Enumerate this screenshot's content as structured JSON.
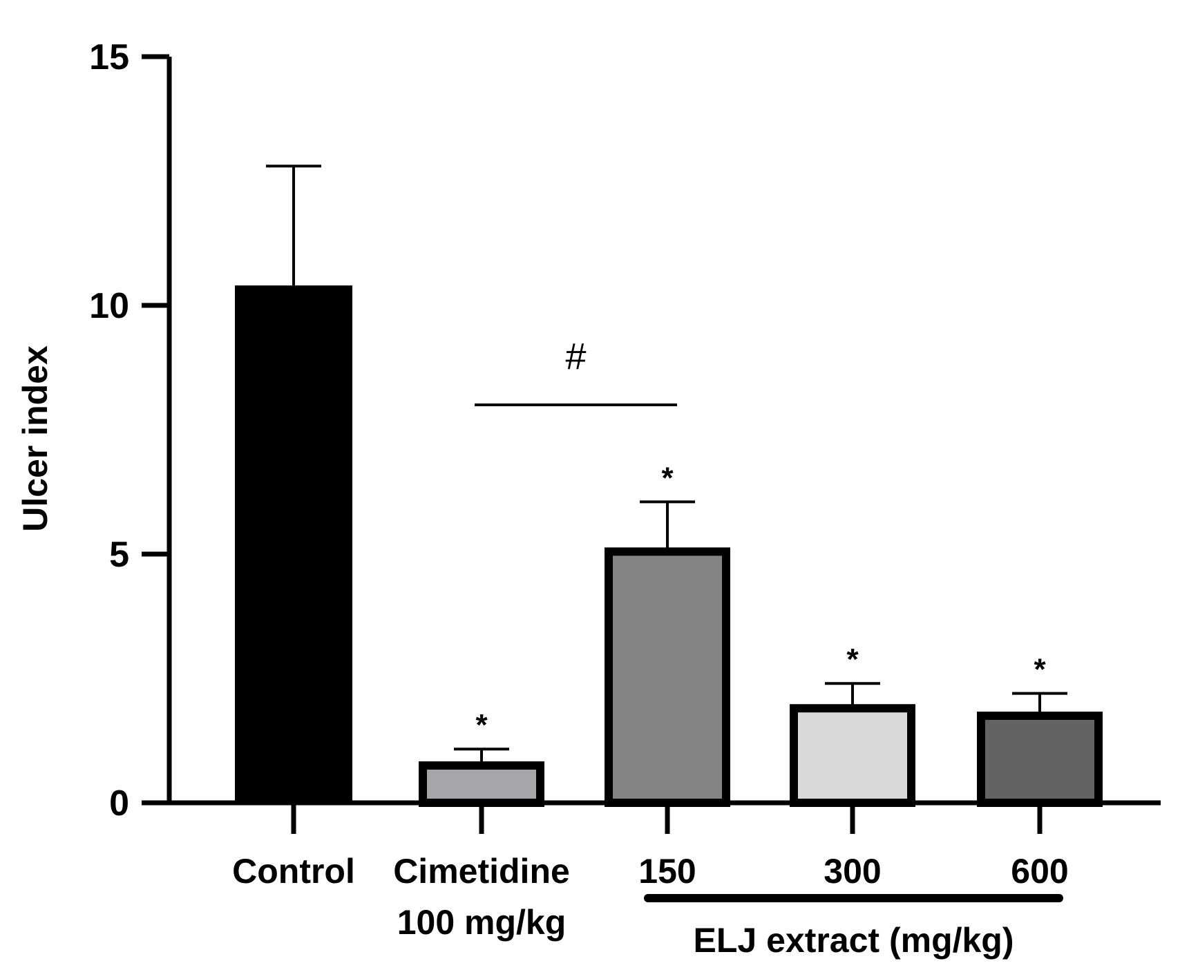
{
  "chart_data": {
    "type": "bar",
    "title": "",
    "xlabel": "",
    "ylabel": "Ulcer index",
    "ylim": [
      0,
      15
    ],
    "yticks": [
      0,
      5,
      10,
      15
    ],
    "grid": false,
    "categories": [
      {
        "line1": "Control",
        "line2": ""
      },
      {
        "line1": "Cimetidine",
        "line2": "100 mg/kg"
      },
      {
        "line1": "150",
        "line2": ""
      },
      {
        "line1": "300",
        "line2": ""
      },
      {
        "line1": "600",
        "line2": ""
      }
    ],
    "values": [
      10.4,
      0.75,
      5.05,
      1.9,
      1.75
    ],
    "errors": [
      2.4,
      0.33,
      1.0,
      0.5,
      0.45
    ],
    "colors": [
      "#000000",
      "#a6a6a8",
      "#838383",
      "#d9d9d9",
      "#636363"
    ],
    "significance": [
      "",
      "*",
      "*",
      "*",
      "*"
    ],
    "comparison": {
      "label": "#",
      "from_category": 1,
      "to_category": 2,
      "level": 8.0
    },
    "group_label": {
      "text": "ELJ extract (mg/kg)",
      "from_category": 2,
      "to_category": 4
    }
  }
}
